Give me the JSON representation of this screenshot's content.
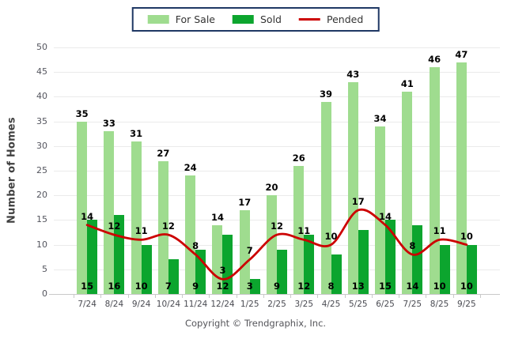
{
  "legend": {
    "items": [
      {
        "label": "For Sale",
        "color": "#9FDC8F",
        "type": "swatch"
      },
      {
        "label": "Sold",
        "color": "#0CA52E",
        "type": "swatch"
      },
      {
        "label": "Pended",
        "color": "#CC0000",
        "type": "line"
      }
    ]
  },
  "ylabel": "Number of Homes",
  "footer": {
    "copyright": "Copyright © Trendgraphix, Inc."
  },
  "colors": {
    "for_sale": "#9FDC8F",
    "sold": "#0CA52E",
    "pended": "#CC0000",
    "legend_border": "#1F3864",
    "gridline": "#EAEAEA",
    "axis": "#C9C9C9"
  },
  "chart_data": {
    "type": "bar",
    "subtype": "grouped-bars-with-line",
    "categories": [
      "7/24",
      "8/24",
      "9/24",
      "10/24",
      "11/24",
      "12/24",
      "1/25",
      "2/25",
      "3/25",
      "4/25",
      "5/25",
      "6/25",
      "7/25",
      "8/25",
      "9/25"
    ],
    "series": [
      {
        "name": "For Sale",
        "type": "bar",
        "color": "#9FDC8F",
        "values": [
          35,
          33,
          31,
          27,
          24,
          14,
          17,
          20,
          26,
          39,
          43,
          34,
          41,
          46,
          47
        ]
      },
      {
        "name": "Sold",
        "type": "bar",
        "color": "#0CA52E",
        "values": [
          15,
          16,
          10,
          7,
          9,
          12,
          3,
          9,
          12,
          8,
          13,
          15,
          14,
          10,
          10
        ]
      },
      {
        "name": "Pended",
        "type": "line",
        "color": "#CC0000",
        "values": [
          14,
          12,
          11,
          12,
          8,
          3,
          7,
          12,
          11,
          10,
          17,
          14,
          8,
          11,
          10
        ]
      }
    ],
    "title": "",
    "xlabel": "",
    "ylabel": "Number of Homes",
    "ylim": [
      0,
      50
    ],
    "ytick_step": 5,
    "grid": true,
    "legend_position": "top-center",
    "data_labels": true
  }
}
